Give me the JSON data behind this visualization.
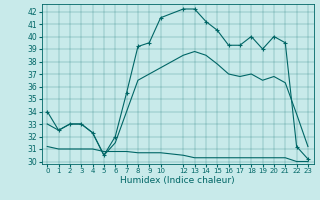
{
  "xlabel": "Humidex (Indice chaleur)",
  "xlim": [
    -0.5,
    23.5
  ],
  "ylim": [
    29.8,
    42.6
  ],
  "yticks": [
    30,
    31,
    32,
    33,
    34,
    35,
    36,
    37,
    38,
    39,
    40,
    41,
    42
  ],
  "xticks": [
    0,
    1,
    2,
    3,
    4,
    5,
    6,
    7,
    8,
    9,
    10,
    12,
    13,
    14,
    15,
    16,
    17,
    18,
    19,
    20,
    21,
    22,
    23
  ],
  "xtick_labels": [
    "0",
    "1",
    "2",
    "3",
    "4",
    "5",
    "6",
    "7",
    "8",
    "9",
    "10",
    "12",
    "13",
    "14",
    "15",
    "16",
    "17",
    "18",
    "19",
    "20",
    "21",
    "22",
    "23"
  ],
  "color": "#006666",
  "bg_color": "#c8eaea",
  "line1_x": [
    0,
    1,
    2,
    3,
    4,
    5,
    6,
    7,
    8,
    9,
    10,
    12,
    13,
    14,
    15,
    16,
    17,
    18,
    19,
    20,
    21,
    22,
    23
  ],
  "line1_y": [
    34,
    32.5,
    33,
    33,
    32.3,
    30.5,
    32,
    35.5,
    39.2,
    39.5,
    41.5,
    42.2,
    42.2,
    41.2,
    40.5,
    39.3,
    39.3,
    40.0,
    39.0,
    40.0,
    39.5,
    31.2,
    30.2
  ],
  "line2_x": [
    0,
    1,
    2,
    3,
    4,
    5,
    6,
    7,
    8,
    9,
    10,
    12,
    13,
    14,
    15,
    16,
    17,
    18,
    19,
    20,
    21,
    22,
    23
  ],
  "line2_y": [
    33,
    32.5,
    33,
    33,
    32.3,
    30.5,
    31.5,
    34.0,
    36.5,
    37.0,
    37.5,
    38.5,
    38.8,
    38.5,
    37.8,
    37.0,
    36.8,
    37.0,
    36.5,
    36.8,
    36.3,
    33.8,
    31.2
  ],
  "line3_x": [
    0,
    1,
    2,
    3,
    4,
    5,
    6,
    7,
    8,
    9,
    10,
    12,
    13,
    14,
    15,
    16,
    17,
    18,
    19,
    20,
    21,
    22,
    23
  ],
  "line3_y": [
    31.2,
    31.0,
    31.0,
    31.0,
    31.0,
    30.8,
    30.8,
    30.8,
    30.7,
    30.7,
    30.7,
    30.5,
    30.3,
    30.3,
    30.3,
    30.3,
    30.3,
    30.3,
    30.3,
    30.3,
    30.3,
    30.0,
    30.0
  ]
}
